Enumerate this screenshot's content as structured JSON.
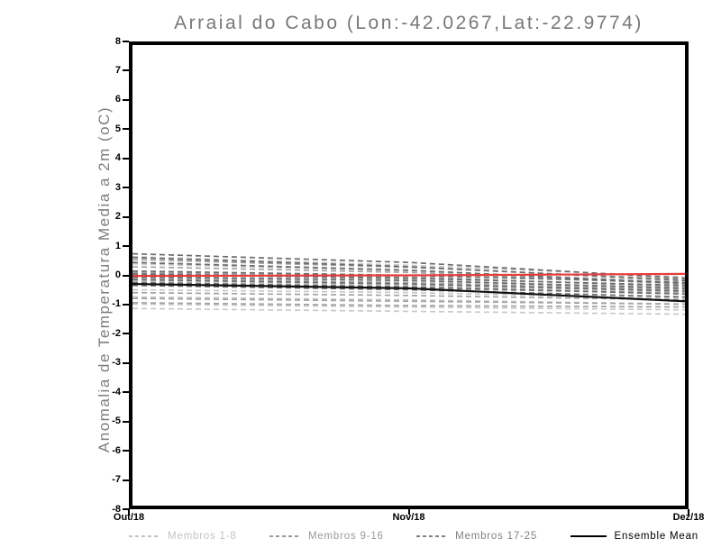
{
  "title": "Arraial do Cabo (Lon:-42.0267,Lat:-22.9774)",
  "chart_data": {
    "type": "line",
    "title": "Arraial do Cabo (Lon:-42.0267,Lat:-22.9774)",
    "xlabel": "",
    "ylabel": "Anomalia de Temperatura Media a 2m (oC)",
    "ylim": [
      -8,
      8
    ],
    "grid": false,
    "legend_position": "bottom",
    "x_tick_labels": [
      "Out/18",
      "Nov/18",
      "Dez/18"
    ],
    "y_tick_labels": [
      "8",
      "7",
      "6",
      "5",
      "4",
      "3",
      "2",
      "1",
      "0",
      "-1",
      "-2",
      "-3",
      "-4",
      "-5",
      "-6",
      "-7",
      "-8"
    ],
    "groups": [
      {
        "name": "Membros 1-8",
        "color": "#c9c9c9",
        "style": "dashed"
      },
      {
        "name": "Membros 9-16",
        "color": "#a2a2a2",
        "style": "dashed"
      },
      {
        "name": "Membros 17-25",
        "color": "#6b6b6b",
        "style": "dashed"
      },
      {
        "name": "Ensemble Mean",
        "color": "#111111",
        "style": "solid"
      }
    ],
    "members": [
      {
        "group": 0,
        "values": [
          0.65,
          0.35,
          -0.05
        ]
      },
      {
        "group": 0,
        "values": [
          0.4,
          0.15,
          -0.22
        ]
      },
      {
        "group": 0,
        "values": [
          0.0,
          -0.15,
          -0.45
        ]
      },
      {
        "group": 0,
        "values": [
          -0.2,
          -0.35,
          -0.6
        ]
      },
      {
        "group": 0,
        "values": [
          -0.5,
          -0.6,
          -0.8
        ]
      },
      {
        "group": 0,
        "values": [
          -0.75,
          -0.85,
          -1.0
        ]
      },
      {
        "group": 0,
        "values": [
          -1.0,
          -1.1,
          -1.2
        ]
      },
      {
        "group": 0,
        "values": [
          -1.15,
          -1.25,
          -1.35
        ]
      },
      {
        "group": 1,
        "values": [
          0.55,
          0.28,
          -0.15
        ]
      },
      {
        "group": 1,
        "values": [
          0.3,
          0.1,
          -0.3
        ]
      },
      {
        "group": 1,
        "values": [
          0.1,
          -0.05,
          -0.4
        ]
      },
      {
        "group": 1,
        "values": [
          -0.1,
          -0.25,
          -0.5
        ]
      },
      {
        "group": 1,
        "values": [
          -0.3,
          -0.45,
          -0.62
        ]
      },
      {
        "group": 1,
        "values": [
          -0.6,
          -0.7,
          -0.85
        ]
      },
      {
        "group": 1,
        "values": [
          -0.8,
          -0.9,
          -1.0
        ]
      },
      {
        "group": 1,
        "values": [
          -0.95,
          -1.05,
          -1.1
        ]
      },
      {
        "group": 2,
        "values": [
          0.75,
          0.45,
          -0.1
        ]
      },
      {
        "group": 2,
        "values": [
          0.62,
          0.3,
          -0.18
        ]
      },
      {
        "group": 2,
        "values": [
          0.45,
          0.18,
          -0.28
        ]
      },
      {
        "group": 2,
        "values": [
          0.15,
          0.0,
          -0.25
        ]
      },
      {
        "group": 2,
        "values": [
          0.05,
          -0.1,
          -0.35
        ]
      },
      {
        "group": 2,
        "values": [
          -0.05,
          -0.18,
          -0.45
        ]
      },
      {
        "group": 2,
        "values": [
          -0.15,
          -0.3,
          -0.55
        ]
      },
      {
        "group": 2,
        "values": [
          -0.25,
          -0.4,
          -0.65
        ]
      },
      {
        "group": 2,
        "values": [
          -0.35,
          -0.5,
          -0.75
        ]
      }
    ],
    "ensemble_mean": {
      "name": "Ensemble Mean",
      "color": "#111111",
      "values": [
        -0.3,
        -0.45,
        -0.9
      ]
    },
    "reference_line": {
      "color": "#e83c3c",
      "values": [
        -0.02,
        0.0,
        0.05
      ]
    }
  },
  "legend": {
    "items": [
      {
        "label": "Membros 1-8",
        "color": "#c2c2c2",
        "style": "dashed"
      },
      {
        "label": "Membros 9-16",
        "color": "#9a9a9a",
        "style": "dashed"
      },
      {
        "label": "Membros 17-25",
        "color": "#828282",
        "style": "dashed"
      },
      {
        "label": "Ensemble Mean",
        "color": "#000000",
        "style": "solid"
      }
    ]
  }
}
